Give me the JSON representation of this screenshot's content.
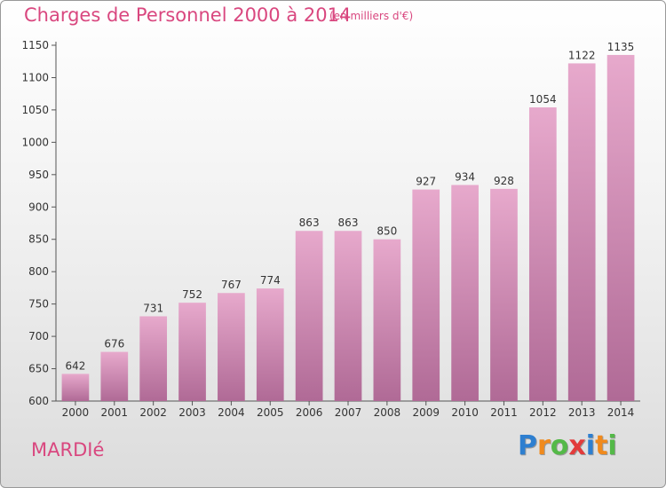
{
  "header": {
    "title": "Charges de Personnel 2000 à 2014",
    "subtitle": "(en milliers d'€)"
  },
  "footer": {
    "commune": "MARDIé",
    "logo": {
      "text": "Proxiti",
      "letters": [
        {
          "ch": "P",
          "color": "#2e7fd0"
        },
        {
          "ch": "r",
          "color": "#f08a1d"
        },
        {
          "ch": "o",
          "color": "#54b948"
        },
        {
          "ch": "x",
          "color": "#e23b3b"
        },
        {
          "ch": "i",
          "color": "#2e7fd0"
        },
        {
          "ch": "t",
          "color": "#f08a1d"
        },
        {
          "ch": "i",
          "color": "#54b948"
        }
      ]
    }
  },
  "colors": {
    "accent": "#d9477f",
    "bar_top": "#e7a9cc",
    "bar_bottom": "#b06a96"
  },
  "chart_data": {
    "type": "bar",
    "title": "Charges de Personnel 2000 à 2014",
    "subtitle": "(en milliers d'€)",
    "categories": [
      "2000",
      "2001",
      "2002",
      "2003",
      "2004",
      "2005",
      "2006",
      "2007",
      "2008",
      "2009",
      "2010",
      "2011",
      "2012",
      "2013",
      "2014"
    ],
    "values": [
      642,
      676,
      731,
      752,
      767,
      774,
      863,
      863,
      850,
      927,
      934,
      928,
      1054,
      1122,
      1135
    ],
    "ylim": [
      600,
      1150
    ],
    "yticks": [
      600,
      650,
      700,
      750,
      800,
      850,
      900,
      950,
      1000,
      1050,
      1100,
      1150
    ],
    "grid": false,
    "legend": "none"
  }
}
